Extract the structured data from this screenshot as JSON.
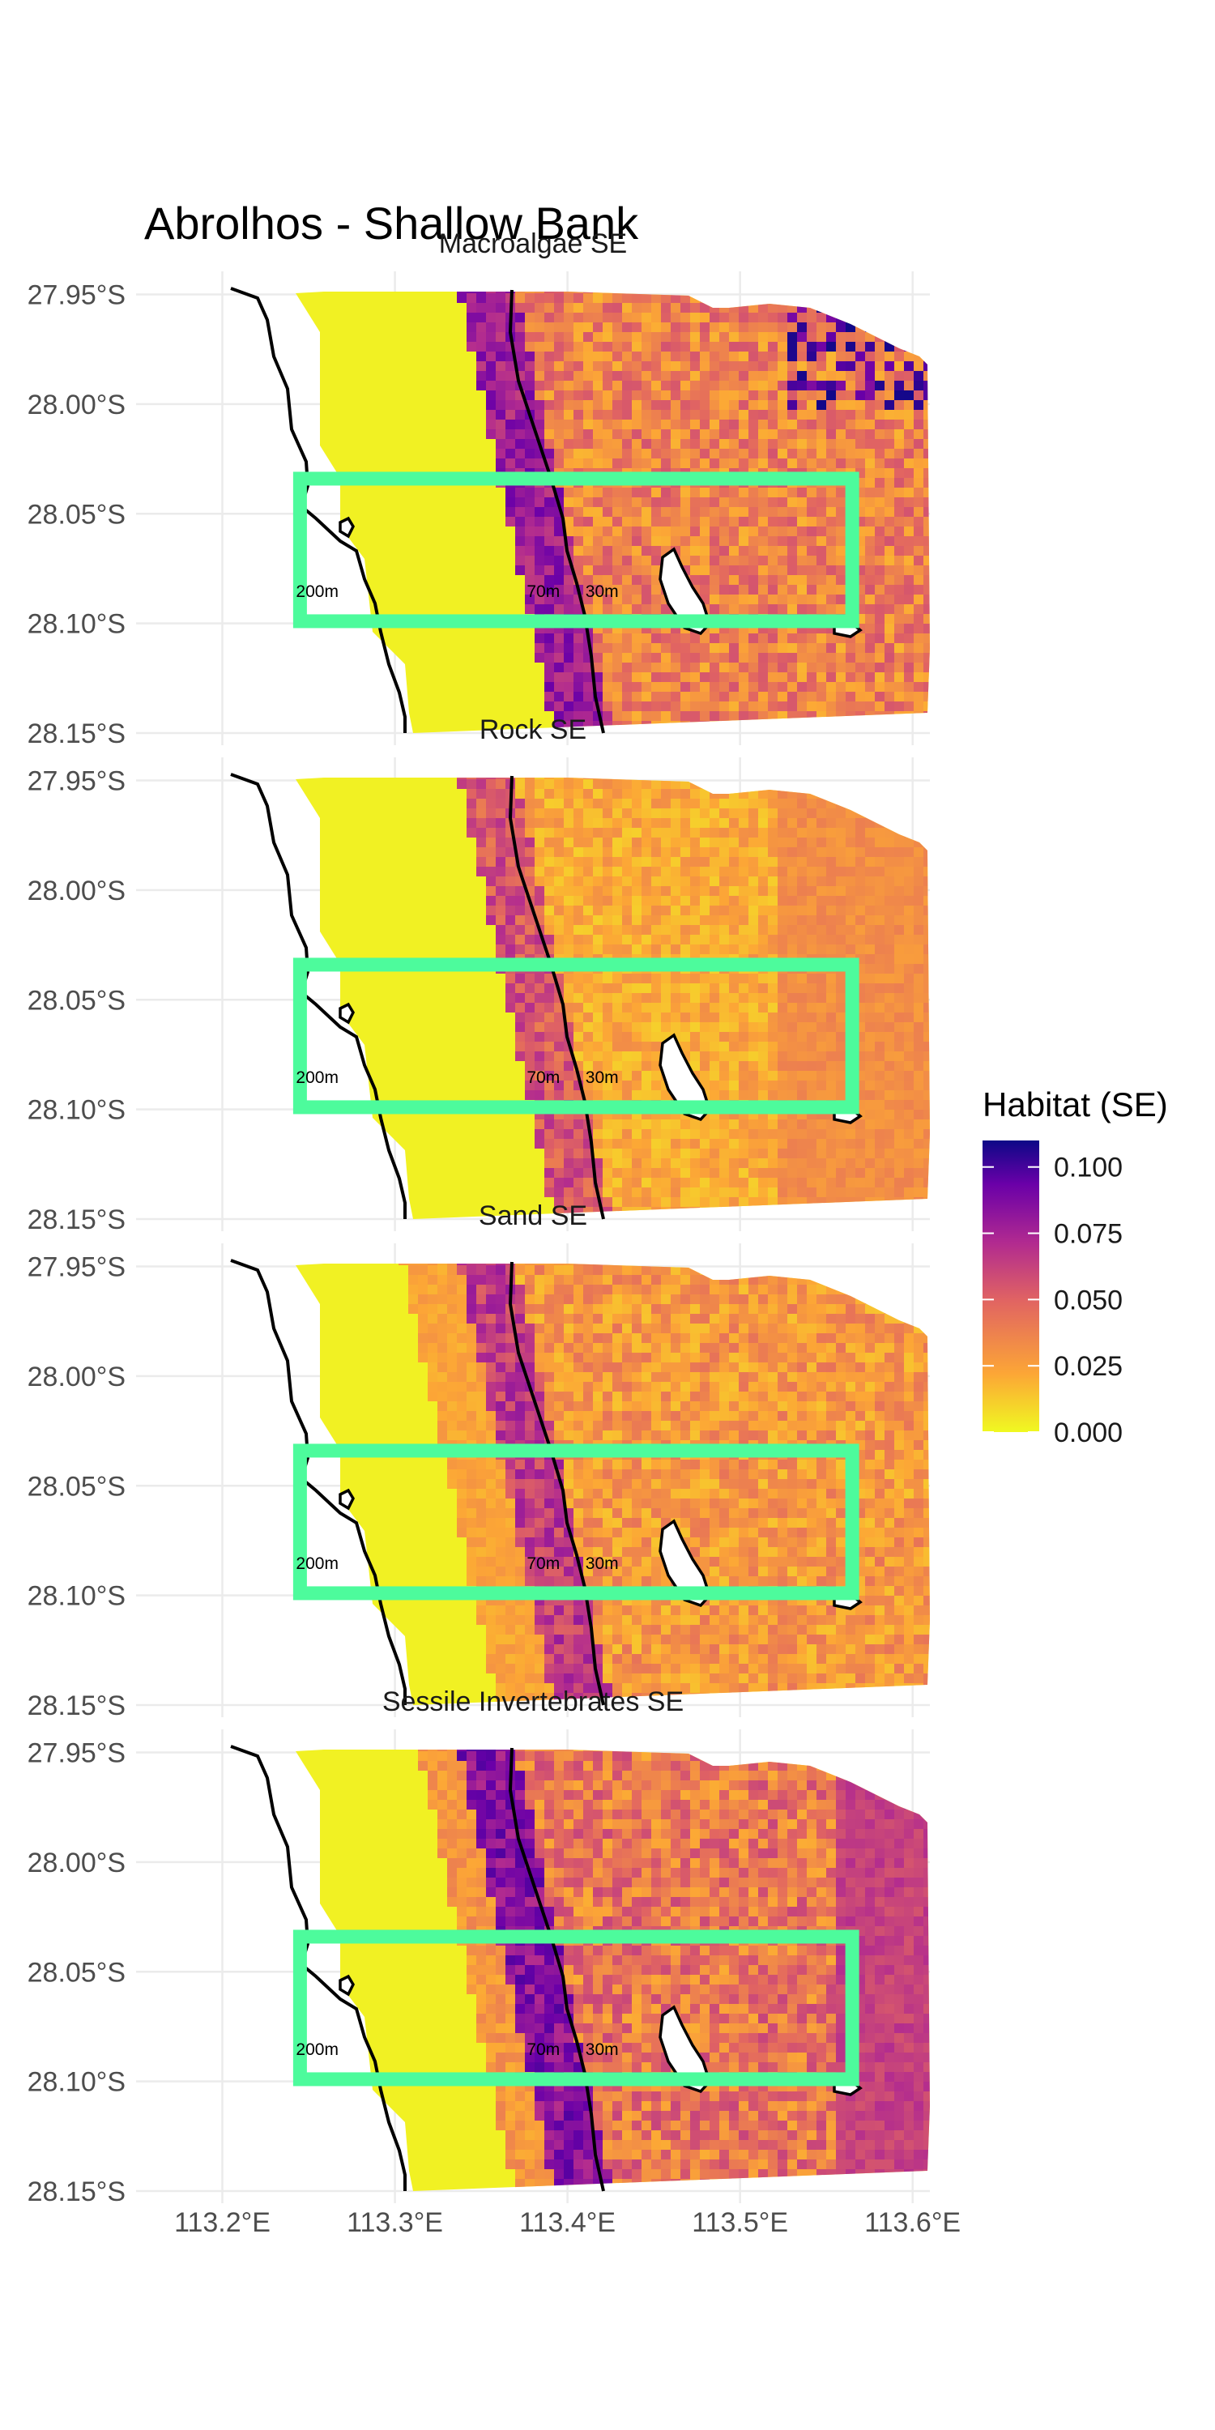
{
  "title": "Abrolhos - Shallow Bank",
  "chart_data": {
    "type": "heatmap",
    "lat_ticks": [
      "27.95°S",
      "28.00°S",
      "28.05°S",
      "28.10°S",
      "28.15°S"
    ],
    "lon_ticks": [
      "113.2°E",
      "113.3°E",
      "113.4°E",
      "113.5°E",
      "113.6°E"
    ],
    "lat_values": [
      -27.95,
      -28.0,
      -28.05,
      -28.1,
      -28.15
    ],
    "lon_values": [
      113.2,
      113.3,
      113.4,
      113.5,
      113.6
    ],
    "xlim": [
      113.15,
      113.61
    ],
    "ylim": [
      -28.15,
      -27.945
    ],
    "study_box": {
      "lon_min": 113.245,
      "lon_max": 113.565,
      "lat_min": -28.099,
      "lat_max": -28.034,
      "color": "#4dfb9c"
    },
    "contour_labels": [
      {
        "text": "200m",
        "lon": 113.255,
        "lat": -28.088
      },
      {
        "text": "70m",
        "lon": 113.386,
        "lat": -28.088
      },
      {
        "text": "30m",
        "lon": 113.42,
        "lat": -28.088
      }
    ],
    "panels": [
      {
        "title": "Macroalgae SE",
        "mean_level": 0.036
      },
      {
        "title": "Rock SE",
        "mean_level": 0.022
      },
      {
        "title": "Sand SE",
        "mean_level": 0.028
      },
      {
        "title": "Sessile Invertebrates SE",
        "mean_level": 0.04
      }
    ],
    "legend": {
      "title": "Habitat (SE)",
      "ticks": [
        "0.100",
        "0.075",
        "0.050",
        "0.025",
        "0.000"
      ],
      "tick_values": [
        0.1,
        0.075,
        0.05,
        0.025,
        0.0
      ],
      "range": [
        0,
        0.11
      ],
      "colors": [
        "#f0f921",
        "#fca636",
        "#e16462",
        "#b12a90",
        "#6a00a8",
        "#0d0887"
      ]
    },
    "grid": true
  }
}
